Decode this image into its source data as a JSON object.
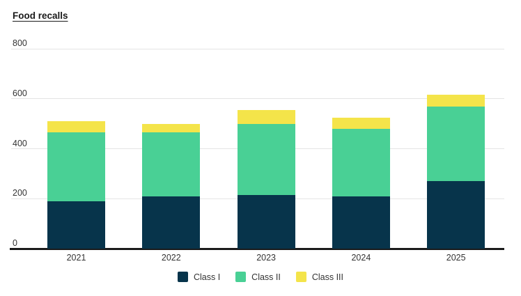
{
  "title": "Food recalls",
  "colors": {
    "class1": "#07344b",
    "class2": "#49d095",
    "class3": "#f4e44a",
    "grid": "#e4e4e4",
    "axis": "#1a1a1a",
    "text": "#333333"
  },
  "chart_data": {
    "type": "bar",
    "stacked": true,
    "title": "Food recalls",
    "xlabel": "",
    "ylabel": "Food recalls",
    "categories": [
      "2021",
      "2022",
      "2023",
      "2024",
      "2025"
    ],
    "series": [
      {
        "name": "Class I",
        "color_key": "class1",
        "values": [
          190,
          210,
          215,
          210,
          270
        ]
      },
      {
        "name": "Class II",
        "color_key": "class2",
        "values": [
          275,
          255,
          285,
          270,
          300
        ]
      },
      {
        "name": "Class III",
        "color_key": "class3",
        "values": [
          45,
          35,
          55,
          45,
          45
        ]
      }
    ],
    "totals": [
      510,
      500,
      555,
      525,
      615
    ],
    "ylim": [
      0,
      800
    ],
    "yticks": [
      0,
      200,
      400,
      600,
      800
    ],
    "grid": true,
    "legend_position": "bottom"
  },
  "legend": {
    "items": [
      {
        "label": "Class I"
      },
      {
        "label": "Class II"
      },
      {
        "label": "Class III"
      }
    ]
  }
}
